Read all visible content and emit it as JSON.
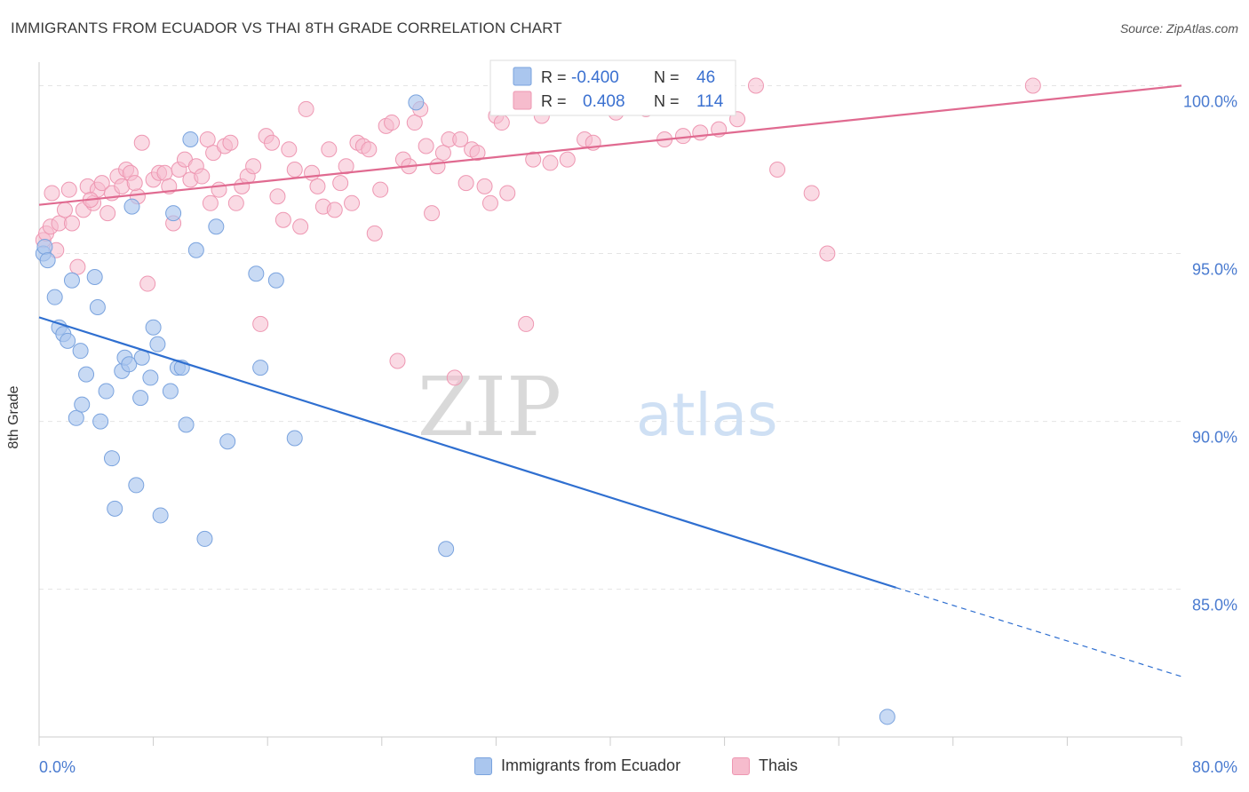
{
  "header": {
    "title": "IMMIGRANTS FROM ECUADOR VS THAI 8TH GRADE CORRELATION CHART",
    "source": "Source: ZipAtlas.com"
  },
  "watermark": {
    "zip": "ZIP",
    "atlas": "atlas"
  },
  "stats_box": {
    "rows": [
      {
        "r_label": "R =",
        "r_value": "-0.400",
        "n_label": "N =",
        "n_value": "46"
      },
      {
        "r_label": "R =",
        "r_value": "0.408",
        "n_label": "N =",
        "n_value": "114"
      }
    ]
  },
  "legend": {
    "items": [
      {
        "label": "Immigrants from Ecuador"
      },
      {
        "label": "Thais"
      }
    ]
  },
  "colors": {
    "blue_fill": "#aac6ee",
    "blue_stroke": "#7aa3de",
    "blue_line": "#2f6fd0",
    "pink_fill": "#f6bccd",
    "pink_stroke": "#ee97b2",
    "pink_line": "#e06a90",
    "tick_label": "#4a7bd0",
    "grid": "#e4e4e4"
  },
  "chart_data": {
    "type": "scatter",
    "title": "IMMIGRANTS FROM ECUADOR VS THAI 8TH GRADE CORRELATION CHART",
    "xlabel": "",
    "ylabel": "8th Grade",
    "xlim": [
      0,
      80
    ],
    "ylim": [
      80.6,
      100.7
    ],
    "x_tick_labels": [
      "0.0%",
      "80.0%"
    ],
    "y_ticks": [
      85,
      90,
      95,
      100
    ],
    "y_tick_labels": [
      "85.0%",
      "90.0%",
      "95.0%",
      "100.0%"
    ],
    "grid": "horizontal dashed",
    "legend_position": "bottom-center",
    "series": [
      {
        "name": "Immigrants from Ecuador",
        "color": "#aac6ee",
        "r": -0.4,
        "n": 46,
        "trend": {
          "x": [
            0,
            60
          ],
          "y": [
            93.1,
            85.05
          ],
          "dashed_to": [
            80,
            82.4
          ]
        },
        "points": [
          [
            0.3,
            95.0
          ],
          [
            0.4,
            95.2
          ],
          [
            0.6,
            94.8
          ],
          [
            1.1,
            93.7
          ],
          [
            1.4,
            92.8
          ],
          [
            1.7,
            92.6
          ],
          [
            2.0,
            92.4
          ],
          [
            2.3,
            94.2
          ],
          [
            2.6,
            90.1
          ],
          [
            2.9,
            92.1
          ],
          [
            3.0,
            90.5
          ],
          [
            3.3,
            91.4
          ],
          [
            3.9,
            94.3
          ],
          [
            4.1,
            93.4
          ],
          [
            4.3,
            90.0
          ],
          [
            4.7,
            90.9
          ],
          [
            5.1,
            88.9
          ],
          [
            5.3,
            87.4
          ],
          [
            5.8,
            91.5
          ],
          [
            6.0,
            91.9
          ],
          [
            6.3,
            91.7
          ],
          [
            6.5,
            96.4
          ],
          [
            6.8,
            88.1
          ],
          [
            7.1,
            90.7
          ],
          [
            7.2,
            91.9
          ],
          [
            7.8,
            91.3
          ],
          [
            8.0,
            92.8
          ],
          [
            8.3,
            92.3
          ],
          [
            8.5,
            87.2
          ],
          [
            9.2,
            90.9
          ],
          [
            9.4,
            96.2
          ],
          [
            9.7,
            91.6
          ],
          [
            10.0,
            91.6
          ],
          [
            10.3,
            89.9
          ],
          [
            10.6,
            98.4
          ],
          [
            11.0,
            95.1
          ],
          [
            11.6,
            86.5
          ],
          [
            12.4,
            95.8
          ],
          [
            13.2,
            89.4
          ],
          [
            15.2,
            94.4
          ],
          [
            15.5,
            91.6
          ],
          [
            16.6,
            94.2
          ],
          [
            17.9,
            89.5
          ],
          [
            26.4,
            99.5
          ],
          [
            28.5,
            86.2
          ],
          [
            59.4,
            81.2
          ]
        ]
      },
      {
        "name": "Thais",
        "color": "#f6bccd",
        "r": 0.408,
        "n": 114,
        "trend": {
          "x": [
            0,
            80
          ],
          "y": [
            96.45,
            100.0
          ]
        },
        "points": [
          [
            0.3,
            95.4
          ],
          [
            0.5,
            95.6
          ],
          [
            0.8,
            95.8
          ],
          [
            1.2,
            95.1
          ],
          [
            1.4,
            95.9
          ],
          [
            1.8,
            96.3
          ],
          [
            2.1,
            96.9
          ],
          [
            2.3,
            95.9
          ],
          [
            2.7,
            94.6
          ],
          [
            3.1,
            96.3
          ],
          [
            3.4,
            97.0
          ],
          [
            3.8,
            96.5
          ],
          [
            4.1,
            96.9
          ],
          [
            4.4,
            97.1
          ],
          [
            4.8,
            96.2
          ],
          [
            5.1,
            96.8
          ],
          [
            5.5,
            97.3
          ],
          [
            5.8,
            97.0
          ],
          [
            6.1,
            97.5
          ],
          [
            6.4,
            97.4
          ],
          [
            6.9,
            96.7
          ],
          [
            7.2,
            98.3
          ],
          [
            7.6,
            94.1
          ],
          [
            8.0,
            97.2
          ],
          [
            8.4,
            97.4
          ],
          [
            8.8,
            97.4
          ],
          [
            9.1,
            97.0
          ],
          [
            9.4,
            95.9
          ],
          [
            9.8,
            97.5
          ],
          [
            10.2,
            97.8
          ],
          [
            10.6,
            97.2
          ],
          [
            11.0,
            97.6
          ],
          [
            11.4,
            97.3
          ],
          [
            11.8,
            98.4
          ],
          [
            12.2,
            98.0
          ],
          [
            12.6,
            96.9
          ],
          [
            13.0,
            98.2
          ],
          [
            13.4,
            98.3
          ],
          [
            13.8,
            96.5
          ],
          [
            14.2,
            97.0
          ],
          [
            14.6,
            97.3
          ],
          [
            15.0,
            97.6
          ],
          [
            15.5,
            92.9
          ],
          [
            15.9,
            98.5
          ],
          [
            16.3,
            98.3
          ],
          [
            16.7,
            96.7
          ],
          [
            17.1,
            96.0
          ],
          [
            17.5,
            98.1
          ],
          [
            17.9,
            97.5
          ],
          [
            18.3,
            95.8
          ],
          [
            18.7,
            99.3
          ],
          [
            19.1,
            97.4
          ],
          [
            19.5,
            97.0
          ],
          [
            19.9,
            96.4
          ],
          [
            20.3,
            98.1
          ],
          [
            20.7,
            96.3
          ],
          [
            21.1,
            97.1
          ],
          [
            21.5,
            97.6
          ],
          [
            21.9,
            96.5
          ],
          [
            22.3,
            98.3
          ],
          [
            22.7,
            98.2
          ],
          [
            23.1,
            98.1
          ],
          [
            23.5,
            95.6
          ],
          [
            23.9,
            96.9
          ],
          [
            24.3,
            98.8
          ],
          [
            24.7,
            98.9
          ],
          [
            25.1,
            91.8
          ],
          [
            25.5,
            97.8
          ],
          [
            25.9,
            97.6
          ],
          [
            26.3,
            98.9
          ],
          [
            26.7,
            99.3
          ],
          [
            27.1,
            98.2
          ],
          [
            27.5,
            96.2
          ],
          [
            27.9,
            97.6
          ],
          [
            28.3,
            98.0
          ],
          [
            28.7,
            98.4
          ],
          [
            29.1,
            91.3
          ],
          [
            29.5,
            98.4
          ],
          [
            29.9,
            97.1
          ],
          [
            30.3,
            98.1
          ],
          [
            30.7,
            98.0
          ],
          [
            31.2,
            97.0
          ],
          [
            31.6,
            96.5
          ],
          [
            32.0,
            99.1
          ],
          [
            32.4,
            98.9
          ],
          [
            32.8,
            96.8
          ],
          [
            33.2,
            100.0
          ],
          [
            34.1,
            92.9
          ],
          [
            34.6,
            97.8
          ],
          [
            35.2,
            99.1
          ],
          [
            35.8,
            97.7
          ],
          [
            36.4,
            99.4
          ],
          [
            37.0,
            97.8
          ],
          [
            37.6,
            99.8
          ],
          [
            38.2,
            98.4
          ],
          [
            38.8,
            98.3
          ],
          [
            39.6,
            99.5
          ],
          [
            40.4,
            99.2
          ],
          [
            41.2,
            100.0
          ],
          [
            42.5,
            99.3
          ],
          [
            43.8,
            98.4
          ],
          [
            45.1,
            98.5
          ],
          [
            46.3,
            98.6
          ],
          [
            47.6,
            98.7
          ],
          [
            48.9,
            99.0
          ],
          [
            50.2,
            100.0
          ],
          [
            51.7,
            97.5
          ],
          [
            54.1,
            96.8
          ],
          [
            55.2,
            95.0
          ],
          [
            69.6,
            100.0
          ],
          [
            0.9,
            96.8
          ],
          [
            3.6,
            96.6
          ],
          [
            6.7,
            97.1
          ],
          [
            12.0,
            96.5
          ]
        ]
      }
    ]
  }
}
